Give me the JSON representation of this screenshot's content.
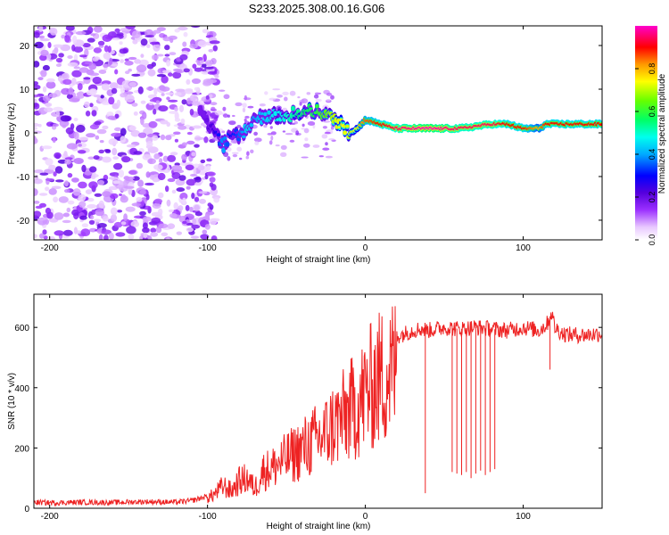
{
  "title": "S233.2025.308.00.16.G06",
  "colors": {
    "line": "#ee2222",
    "frame": "#000000"
  },
  "chart_data": [
    {
      "type": "heatmap",
      "xlabel": "Height of straight line (km)",
      "ylabel": "Frequency (Hz)",
      "xlim": [
        -210,
        150
      ],
      "ylim": [
        -24.5,
        24.5
      ],
      "xticks": [
        -200,
        -100,
        0,
        100
      ],
      "yticks": [
        -20,
        -10,
        0,
        10,
        20
      ],
      "colorbar": {
        "label": "Normalized spectral amplitude",
        "range": [
          0.0,
          1.0
        ],
        "ticks": [
          0.0,
          0.2,
          0.4,
          0.6,
          0.8
        ],
        "colormap": "white-magenta-purple-blue-cyan-green-yellow-orange-red-magenta"
      },
      "ridge": {
        "description": "dominant frequency track",
        "x_km": [
          -105,
          -95,
          -90,
          -85,
          -80,
          -75,
          -70,
          -60,
          -50,
          -40,
          -30,
          -25,
          -20,
          -15,
          -10,
          -5,
          0,
          10,
          20,
          40,
          60,
          80,
          90,
          100,
          105,
          110,
          115,
          120,
          150
        ],
        "freq_hz": [
          5,
          0,
          -3,
          0,
          -1,
          1,
          3,
          4,
          4,
          5,
          5,
          4,
          3,
          2,
          0,
          1,
          3,
          2,
          1,
          1,
          1,
          2,
          2,
          1,
          1,
          1,
          2,
          2,
          2
        ],
        "amplitude": [
          0.15,
          0.25,
          0.4,
          0.3,
          0.35,
          0.45,
          0.4,
          0.45,
          0.5,
          0.55,
          0.6,
          0.65,
          0.7,
          0.75,
          0.7,
          0.75,
          0.85,
          0.9,
          0.95,
          1.0,
          0.95,
          0.95,
          0.9,
          0.9,
          0.85,
          0.8,
          0.9,
          0.9,
          0.9
        ]
      },
      "noise_region_x_km": [
        -210,
        -100
      ]
    },
    {
      "type": "line",
      "xlabel": "Height of straight line (km)",
      "ylabel": "SNR (10 * v/v)",
      "xlim": [
        -210,
        150
      ],
      "ylim": [
        0,
        710
      ],
      "xticks": [
        -200,
        -100,
        0,
        100
      ],
      "yticks": [
        0,
        200,
        400,
        600
      ],
      "series": [
        {
          "name": "SNR",
          "color": "#ee2222",
          "x": [
            -210,
            -200,
            -180,
            -160,
            -140,
            -120,
            -110,
            -100,
            -95,
            -90,
            -85,
            -80,
            -75,
            -70,
            -65,
            -60,
            -55,
            -50,
            -45,
            -40,
            -35,
            -30,
            -25,
            -20,
            -15,
            -10,
            -5,
            0,
            5,
            10,
            15,
            20,
            25,
            30,
            35,
            40,
            45,
            50,
            60,
            70,
            80,
            90,
            100,
            110,
            115,
            118,
            120,
            125,
            130,
            140,
            150
          ],
          "y": [
            20,
            18,
            20,
            19,
            22,
            20,
            25,
            40,
            60,
            90,
            70,
            110,
            120,
            80,
            150,
            160,
            180,
            200,
            220,
            240,
            260,
            280,
            300,
            340,
            360,
            390,
            420,
            460,
            500,
            530,
            550,
            570,
            580,
            590,
            595,
            590,
            595,
            600,
            595,
            600,
            595,
            590,
            600,
            590,
            610,
            650,
            600,
            580,
            575,
            575,
            580
          ],
          "dropouts": [
            {
              "x": 38,
              "y": 50
            },
            {
              "x": 55,
              "y": 120
            },
            {
              "x": 58,
              "y": 115
            },
            {
              "x": 61,
              "y": 110
            },
            {
              "x": 64,
              "y": 120
            },
            {
              "x": 67,
              "y": 100
            },
            {
              "x": 70,
              "y": 115
            },
            {
              "x": 73,
              "y": 125
            },
            {
              "x": 76,
              "y": 110
            },
            {
              "x": 79,
              "y": 120
            },
            {
              "x": 82,
              "y": 130
            },
            {
              "x": 117,
              "y": 460
            }
          ]
        }
      ]
    }
  ]
}
